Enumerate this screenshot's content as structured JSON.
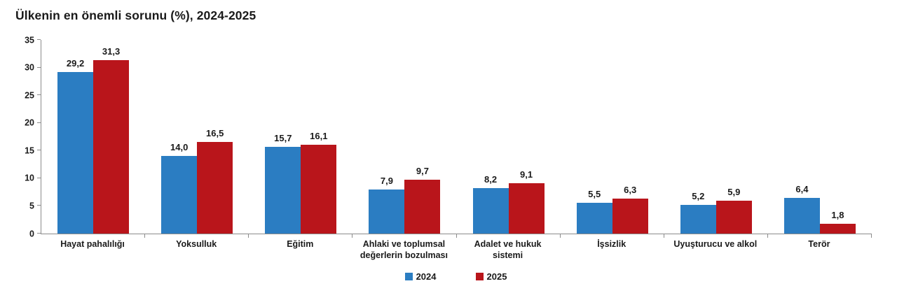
{
  "chart_data": {
    "type": "bar",
    "title": "Ülkenin en önemli sorunu (%), 2024-2025",
    "categories": [
      "Hayat pahalılığı",
      "Yoksulluk",
      "Eğitim",
      "Ahlaki ve toplumsal değerlerin bozulması",
      "Adalet ve hukuk sistemi",
      "İşsizlik",
      "Uyuşturucu ve alkol",
      "Terör"
    ],
    "series": [
      {
        "name": "2024",
        "color": "#2b7dc2",
        "values": [
          29.2,
          14.0,
          15.7,
          7.9,
          8.2,
          5.5,
          5.2,
          6.4
        ],
        "labels": [
          "29,2",
          "14,0",
          "15,7",
          "7,9",
          "8,2",
          "5,5",
          "5,2",
          "6,4"
        ]
      },
      {
        "name": "2025",
        "color": "#b9151b",
        "values": [
          31.3,
          16.5,
          16.1,
          9.7,
          9.1,
          6.3,
          5.9,
          1.8
        ],
        "labels": [
          "31,3",
          "16,5",
          "16,1",
          "9,7",
          "9,1",
          "6,3",
          "5,9",
          "1,8"
        ]
      }
    ],
    "ylim": [
      0,
      35
    ],
    "yticks": [
      0,
      5,
      10,
      15,
      20,
      25,
      30,
      35
    ],
    "grid": false,
    "legend_position": "bottom",
    "axis_color": "#8c8c8c",
    "text_color": "#1a1a1a"
  }
}
